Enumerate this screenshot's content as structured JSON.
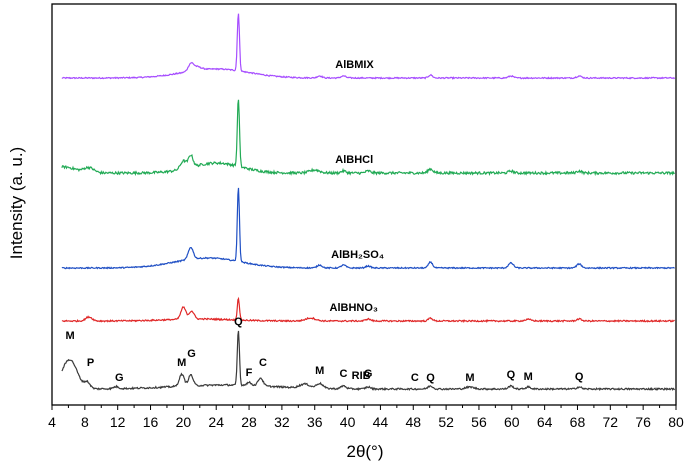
{
  "chart_data": {
    "type": "line",
    "xlabel": "2θ(°)",
    "ylabel": "Intensity (a. u.)",
    "xlim": [
      4,
      80
    ],
    "x_ticks": [
      "4",
      "8",
      "12",
      "16",
      "20",
      "24",
      "28",
      "32",
      "36",
      "40",
      "44",
      "48",
      "52",
      "56",
      "60",
      "64",
      "68",
      "72",
      "76",
      "80"
    ],
    "series": [
      {
        "name": "AlBMIX",
        "label_x": 38.5,
        "color": "#a64dff",
        "baseline": 0.0,
        "noise": 0.6,
        "peaks": [
          [
            20.9,
            6,
            0.3
          ],
          [
            21.5,
            4,
            0.6
          ],
          [
            26.7,
            58,
            0.13
          ],
          [
            36.6,
            2,
            0.3
          ],
          [
            39.5,
            2,
            0.3
          ],
          [
            50.1,
            3,
            0.25
          ],
          [
            59.9,
            2,
            0.3
          ],
          [
            68.2,
            2,
            0.3
          ]
        ],
        "hump": [
          24,
          9,
          4
        ]
      },
      {
        "name": "AlBHCl",
        "label_x": 38.5,
        "color": "#22aa55",
        "baseline": 0.0,
        "noise": 1.2,
        "peaks": [
          [
            5.5,
            6,
            1.4
          ],
          [
            8.5,
            5,
            0.6
          ],
          [
            20.0,
            8,
            0.35
          ],
          [
            20.9,
            12,
            0.28
          ],
          [
            26.7,
            68,
            0.13
          ],
          [
            36.0,
            3,
            0.6
          ],
          [
            39.5,
            2,
            0.3
          ],
          [
            42.5,
            2,
            0.3
          ],
          [
            50.1,
            4,
            0.3
          ],
          [
            59.9,
            2,
            0.3
          ],
          [
            68.2,
            2,
            0.3
          ]
        ],
        "hump": [
          24,
          10,
          3
        ]
      },
      {
        "name": "AlBH₂SO₄",
        "label_x": 38.0,
        "color": "#1f4fc4",
        "baseline": 0.0,
        "noise": 0.6,
        "peaks": [
          [
            20.9,
            12,
            0.3
          ],
          [
            26.7,
            74,
            0.13
          ],
          [
            36.6,
            3,
            0.3
          ],
          [
            39.5,
            3,
            0.3
          ],
          [
            42.5,
            2,
            0.3
          ],
          [
            50.1,
            6,
            0.25
          ],
          [
            59.9,
            5,
            0.3
          ],
          [
            68.2,
            4,
            0.3
          ]
        ],
        "hump": [
          23,
          10,
          4
        ]
      },
      {
        "name": "AlBHNO₃",
        "label_x": 37.8,
        "color": "#e02828",
        "baseline": 0.0,
        "noise": 0.7,
        "peaks": [
          [
            8.5,
            4,
            0.4
          ],
          [
            20.0,
            12,
            0.3
          ],
          [
            21.0,
            8,
            0.3
          ],
          [
            26.7,
            22,
            0.13
          ],
          [
            35.5,
            3,
            0.6
          ],
          [
            42.5,
            2,
            0.3
          ],
          [
            50.1,
            3,
            0.25
          ],
          [
            62.0,
            1.5,
            0.4
          ],
          [
            68.2,
            2,
            0.3
          ]
        ],
        "hump": [
          22,
          2,
          4
        ]
      },
      {
        "name": "RIB",
        "label_x": 40.5,
        "color": "#3a3a3a",
        "baseline": 0.0,
        "noise": 0.8,
        "peaks": [
          [
            5.8,
            18,
            0.9
          ],
          [
            6.5,
            14,
            0.8
          ],
          [
            8.3,
            6,
            0.35
          ],
          [
            11.8,
            2,
            0.3
          ],
          [
            19.8,
            12,
            0.3
          ],
          [
            20.9,
            11,
            0.28
          ],
          [
            26.7,
            55,
            0.13
          ],
          [
            28.0,
            3,
            0.3
          ],
          [
            29.4,
            8,
            0.3
          ],
          [
            34.8,
            4,
            0.6
          ],
          [
            36.6,
            5,
            0.4
          ],
          [
            39.5,
            3,
            0.3
          ],
          [
            42.5,
            2,
            0.3
          ],
          [
            50.1,
            3,
            0.3
          ],
          [
            54.9,
            2,
            0.5
          ],
          [
            59.9,
            3,
            0.3
          ],
          [
            62.0,
            2,
            0.3
          ],
          [
            68.2,
            2,
            0.3
          ]
        ],
        "hump": [
          25,
          4,
          6
        ]
      }
    ],
    "annotations": [
      {
        "text": "M",
        "x": 6.2
      },
      {
        "text": "P",
        "x": 8.7
      },
      {
        "text": "G",
        "x": 12.2
      },
      {
        "text": "M",
        "x": 19.8
      },
      {
        "text": "G",
        "x": 21.0
      },
      {
        "text": "Q",
        "x": 26.7
      },
      {
        "text": "F",
        "x": 28.0
      },
      {
        "text": "C",
        "x": 29.7
      },
      {
        "text": "M",
        "x": 36.6
      },
      {
        "text": "C",
        "x": 39.5
      },
      {
        "text": "G",
        "x": 42.5
      },
      {
        "text": "C",
        "x": 48.2
      },
      {
        "text": "Q",
        "x": 50.1
      },
      {
        "text": "M",
        "x": 54.9
      },
      {
        "text": "Q",
        "x": 59.9
      },
      {
        "text": "M",
        "x": 62.0
      },
      {
        "text": "Q",
        "x": 68.2
      }
    ],
    "grid": false
  }
}
